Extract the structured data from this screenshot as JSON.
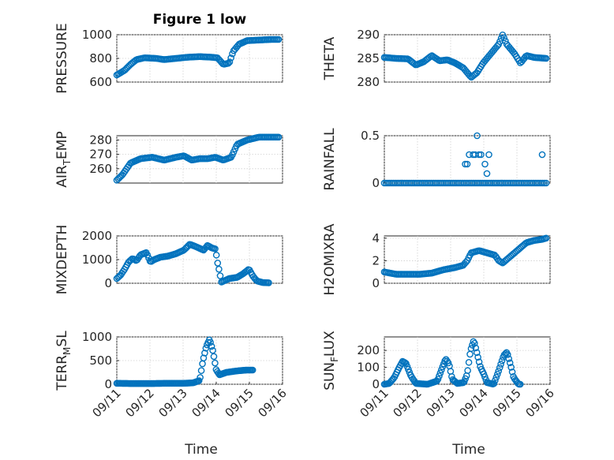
{
  "figure": {
    "title": "Figure 1 low",
    "marker_color": "#0072BD"
  },
  "chart_data": [
    {
      "type": "scatter",
      "id": "pressure",
      "col": 0,
      "row": 0,
      "ylabel": "PRESSURE",
      "ylabel_sub": null,
      "ylim": [
        600,
        1000
      ],
      "yticks": [
        600,
        800,
        1000
      ],
      "ytick_labels": [
        "600",
        "800",
        "1000"
      ],
      "xlim": [
        0,
        4.2
      ],
      "xticks": [],
      "xtick_labels": [],
      "xlabel": "",
      "anchors": [
        [
          0,
          660
        ],
        [
          0.2,
          700
        ],
        [
          0.35,
          750
        ],
        [
          0.5,
          790
        ],
        [
          0.7,
          805
        ],
        [
          1.0,
          800
        ],
        [
          1.2,
          790
        ],
        [
          1.5,
          800
        ],
        [
          1.8,
          810
        ],
        [
          2.1,
          815
        ],
        [
          2.4,
          810
        ],
        [
          2.55,
          805
        ],
        [
          2.7,
          750
        ],
        [
          2.85,
          760
        ],
        [
          2.95,
          860
        ],
        [
          3.1,
          920
        ],
        [
          3.3,
          950
        ],
        [
          3.6,
          955
        ],
        [
          3.9,
          960
        ],
        [
          4.1,
          960
        ]
      ]
    },
    {
      "type": "scatter",
      "id": "theta",
      "col": 1,
      "row": 0,
      "ylabel": "THETA",
      "ylabel_sub": null,
      "ylim": [
        280,
        290
      ],
      "yticks": [
        280,
        285,
        290
      ],
      "ytick_labels": [
        "280",
        "285",
        "290"
      ],
      "xlim": [
        0,
        4.2
      ],
      "xticks": [],
      "xtick_labels": [],
      "xlabel": "",
      "anchors": [
        [
          0,
          285.2
        ],
        [
          0.3,
          285.0
        ],
        [
          0.6,
          284.9
        ],
        [
          0.8,
          283.6
        ],
        [
          1.0,
          284.3
        ],
        [
          1.2,
          285.6
        ],
        [
          1.4,
          284.5
        ],
        [
          1.6,
          284.7
        ],
        [
          1.8,
          284.0
        ],
        [
          2.0,
          283.0
        ],
        [
          2.2,
          281.0
        ],
        [
          2.35,
          282.0
        ],
        [
          2.5,
          284.0
        ],
        [
          2.7,
          286.0
        ],
        [
          2.9,
          288.0
        ],
        [
          3.0,
          290.0
        ],
        [
          3.1,
          288.0
        ],
        [
          3.3,
          286.0
        ],
        [
          3.45,
          284.0
        ],
        [
          3.6,
          285.6
        ],
        [
          3.8,
          285.2
        ],
        [
          4.1,
          285.0
        ]
      ]
    },
    {
      "type": "scatter",
      "id": "air_temp",
      "col": 0,
      "row": 1,
      "ylabel": "AIR",
      "ylabel_sub": "T",
      "ylabel_tail": "EMP",
      "ylim": [
        250,
        283
      ],
      "yticks": [
        260,
        270,
        280
      ],
      "ytick_labels": [
        "260",
        "270",
        "280"
      ],
      "xlim": [
        0,
        4.2
      ],
      "xticks": [],
      "xtick_labels": [],
      "xlabel": "",
      "anchors": [
        [
          0,
          252
        ],
        [
          0.15,
          256
        ],
        [
          0.35,
          264
        ],
        [
          0.6,
          267
        ],
        [
          0.9,
          268
        ],
        [
          1.2,
          266
        ],
        [
          1.5,
          268
        ],
        [
          1.7,
          269
        ],
        [
          1.9,
          266
        ],
        [
          2.1,
          267
        ],
        [
          2.3,
          267
        ],
        [
          2.5,
          268
        ],
        [
          2.7,
          266
        ],
        [
          2.9,
          268
        ],
        [
          3.05,
          277
        ],
        [
          3.3,
          280
        ],
        [
          3.6,
          282
        ],
        [
          3.9,
          282
        ],
        [
          4.1,
          282
        ]
      ]
    },
    {
      "type": "scatter",
      "id": "rainfall",
      "col": 1,
      "row": 1,
      "ylabel": "RAINFALL",
      "ylabel_sub": null,
      "ylim": [
        0,
        0.5
      ],
      "yticks": [
        0,
        0.5
      ],
      "ytick_labels": [
        "0",
        "0.5"
      ],
      "xlim": [
        0,
        4.2
      ],
      "xticks": [],
      "xtick_labels": [],
      "xlabel": "",
      "baseline": [
        0,
        4.1
      ],
      "points": [
        [
          2.05,
          0.2
        ],
        [
          2.1,
          0.2
        ],
        [
          2.15,
          0.3
        ],
        [
          2.25,
          0.3
        ],
        [
          2.3,
          0.3
        ],
        [
          2.35,
          0.5
        ],
        [
          2.4,
          0.3
        ],
        [
          2.45,
          0.3
        ],
        [
          2.55,
          0.2
        ],
        [
          2.6,
          0.1
        ],
        [
          2.65,
          0.3
        ],
        [
          4.0,
          0.3
        ]
      ]
    },
    {
      "type": "scatter",
      "id": "mixdepth",
      "col": 0,
      "row": 2,
      "ylabel": "MIXDEPTH",
      "ylabel_sub": null,
      "ylim": [
        0,
        2000
      ],
      "yticks": [
        0,
        1000,
        2000
      ],
      "ytick_labels": [
        "0",
        "1000",
        "2000"
      ],
      "xlim": [
        0,
        4.2
      ],
      "xticks": [],
      "xtick_labels": [],
      "xlabel": "",
      "anchors": [
        [
          0,
          200
        ],
        [
          0.1,
          350
        ],
        [
          0.2,
          600
        ],
        [
          0.3,
          900
        ],
        [
          0.4,
          1050
        ],
        [
          0.5,
          950
        ],
        [
          0.6,
          1200
        ],
        [
          0.75,
          1300
        ],
        [
          0.85,
          900
        ],
        [
          0.95,
          1000
        ],
        [
          1.1,
          1100
        ],
        [
          1.3,
          1150
        ],
        [
          1.5,
          1250
        ],
        [
          1.7,
          1400
        ],
        [
          1.85,
          1650
        ],
        [
          2.0,
          1550
        ],
        [
          2.2,
          1400
        ],
        [
          2.3,
          1600
        ],
        [
          2.4,
          1500
        ],
        [
          2.5,
          1450
        ],
        [
          2.55,
          900
        ],
        [
          2.6,
          500
        ],
        [
          2.65,
          50
        ],
        [
          2.85,
          200
        ],
        [
          3.05,
          250
        ],
        [
          3.2,
          400
        ],
        [
          3.35,
          600
        ],
        [
          3.45,
          300
        ],
        [
          3.55,
          100
        ],
        [
          3.7,
          30
        ],
        [
          3.85,
          20
        ]
      ]
    },
    {
      "type": "scatter",
      "id": "h2omixra",
      "col": 1,
      "row": 2,
      "ylabel": "H2OMIXRA",
      "ylabel_sub": null,
      "ylim": [
        0,
        4.2
      ],
      "yticks": [
        0,
        2,
        4
      ],
      "ytick_labels": [
        "0",
        "2",
        "4"
      ],
      "xlim": [
        0,
        4.2
      ],
      "xticks": [],
      "xtick_labels": [],
      "xlabel": "",
      "anchors": [
        [
          0,
          1.0
        ],
        [
          0.3,
          0.8
        ],
        [
          0.6,
          0.8
        ],
        [
          0.9,
          0.8
        ],
        [
          1.2,
          0.9
        ],
        [
          1.5,
          1.2
        ],
        [
          1.8,
          1.4
        ],
        [
          2.0,
          1.6
        ],
        [
          2.1,
          2.0
        ],
        [
          2.2,
          2.7
        ],
        [
          2.4,
          2.9
        ],
        [
          2.6,
          2.7
        ],
        [
          2.8,
          2.5
        ],
        [
          2.9,
          2.0
        ],
        [
          3.0,
          1.8
        ],
        [
          3.2,
          2.4
        ],
        [
          3.4,
          3.0
        ],
        [
          3.6,
          3.6
        ],
        [
          3.8,
          3.8
        ],
        [
          4.0,
          3.9
        ],
        [
          4.1,
          4.0
        ]
      ]
    },
    {
      "type": "scatter",
      "id": "terr_msl",
      "col": 0,
      "row": 3,
      "ylabel": "TERR",
      "ylabel_sub": "M",
      "ylabel_tail": "SL",
      "ylim": [
        0,
        1000
      ],
      "yticks": [
        0,
        500,
        1000
      ],
      "ytick_labels": [
        "0",
        "500",
        "1000"
      ],
      "xlim": [
        0,
        5
      ],
      "xticks": [
        0,
        1,
        2,
        3,
        4,
        5
      ],
      "xtick_labels": [
        "09/11",
        "09/12",
        "09/13",
        "09/14",
        "09/15",
        "09/16"
      ],
      "xlabel": "Time",
      "anchors": [
        [
          0,
          20
        ],
        [
          0.5,
          15
        ],
        [
          1.0,
          15
        ],
        [
          1.5,
          20
        ],
        [
          2.0,
          20
        ],
        [
          2.3,
          30
        ],
        [
          2.5,
          80
        ],
        [
          2.6,
          500
        ],
        [
          2.7,
          800
        ],
        [
          2.8,
          950
        ],
        [
          2.9,
          700
        ],
        [
          3.0,
          300
        ],
        [
          3.1,
          200
        ],
        [
          3.3,
          250
        ],
        [
          3.6,
          280
        ],
        [
          3.9,
          300
        ],
        [
          4.1,
          300
        ]
      ]
    },
    {
      "type": "scatter",
      "id": "sun_flux",
      "col": 1,
      "row": 3,
      "ylabel": "SUN",
      "ylabel_sub": "F",
      "ylabel_tail": "LUX",
      "ylim": [
        0,
        280
      ],
      "yticks": [
        0,
        100,
        200
      ],
      "ytick_labels": [
        "0",
        "100",
        "200"
      ],
      "xlim": [
        0,
        5
      ],
      "xticks": [
        0,
        1,
        2,
        3,
        4,
        5
      ],
      "xtick_labels": [
        "09/11",
        "09/12",
        "09/13",
        "09/14",
        "09/15",
        "09/16"
      ],
      "xlabel": "Time",
      "anchors": [
        [
          0,
          0
        ],
        [
          0.15,
          5
        ],
        [
          0.3,
          40
        ],
        [
          0.45,
          100
        ],
        [
          0.55,
          135
        ],
        [
          0.65,
          125
        ],
        [
          0.8,
          50
        ],
        [
          0.95,
          5
        ],
        [
          1.3,
          0
        ],
        [
          1.6,
          20
        ],
        [
          1.75,
          100
        ],
        [
          1.85,
          150
        ],
        [
          1.95,
          120
        ],
        [
          2.05,
          30
        ],
        [
          2.2,
          5
        ],
        [
          2.4,
          10
        ],
        [
          2.5,
          60
        ],
        [
          2.6,
          200
        ],
        [
          2.7,
          260
        ],
        [
          2.8,
          180
        ],
        [
          2.9,
          100
        ],
        [
          3.0,
          60
        ],
        [
          3.1,
          10
        ],
        [
          3.3,
          0
        ],
        [
          3.45,
          80
        ],
        [
          3.6,
          170
        ],
        [
          3.7,
          190
        ],
        [
          3.8,
          120
        ],
        [
          3.9,
          40
        ],
        [
          4.05,
          0
        ],
        [
          4.1,
          0
        ]
      ]
    }
  ]
}
